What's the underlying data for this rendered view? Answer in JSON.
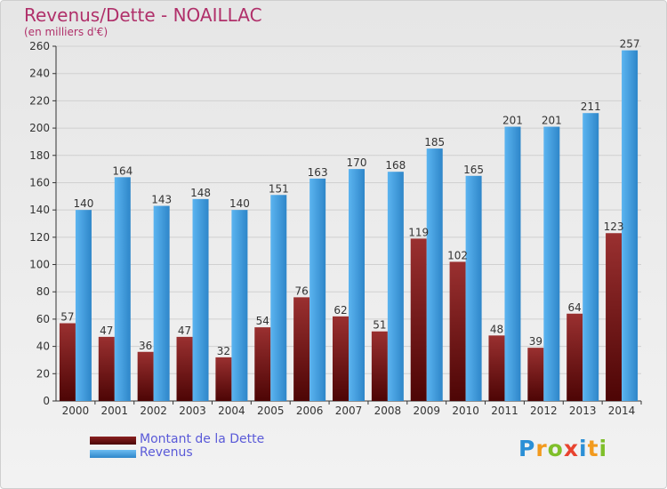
{
  "header": {
    "title": "Revenus/Dette - NOAILLAC",
    "subtitle": "(en milliers d'€)"
  },
  "chart_data": {
    "type": "bar",
    "categories": [
      "2000",
      "2001",
      "2002",
      "2003",
      "2004",
      "2005",
      "2006",
      "2007",
      "2008",
      "2009",
      "2010",
      "2011",
      "2012",
      "2013",
      "2014"
    ],
    "series": [
      {
        "name": "Montant de la Dette",
        "color": "#7a1a1a",
        "values": [
          57,
          47,
          36,
          47,
          32,
          54,
          76,
          62,
          51,
          119,
          102,
          48,
          39,
          64,
          123
        ]
      },
      {
        "name": "Revenus",
        "color": "#4da6e8",
        "values": [
          140,
          164,
          143,
          148,
          140,
          151,
          163,
          170,
          168,
          185,
          165,
          201,
          201,
          211,
          257
        ]
      }
    ],
    "ylim": [
      0,
      260
    ],
    "yticks": [
      0,
      20,
      40,
      60,
      80,
      100,
      120,
      140,
      160,
      180,
      200,
      220,
      240,
      260
    ],
    "grid": true,
    "legend_position": "bottom-left"
  },
  "legend": [
    {
      "label": "Montant de la Dette",
      "color": "#6b0f0f"
    },
    {
      "label": "Revenus",
      "color": "#4da6e8"
    }
  ],
  "logo": {
    "letters": [
      "P",
      "r",
      "o",
      "x",
      "i",
      "t",
      "i"
    ],
    "colors": [
      "#2b8fd6",
      "#f29a1e",
      "#7fbf2a",
      "#e8432f",
      "#2b8fd6",
      "#f29a1e",
      "#7fbf2a"
    ]
  }
}
